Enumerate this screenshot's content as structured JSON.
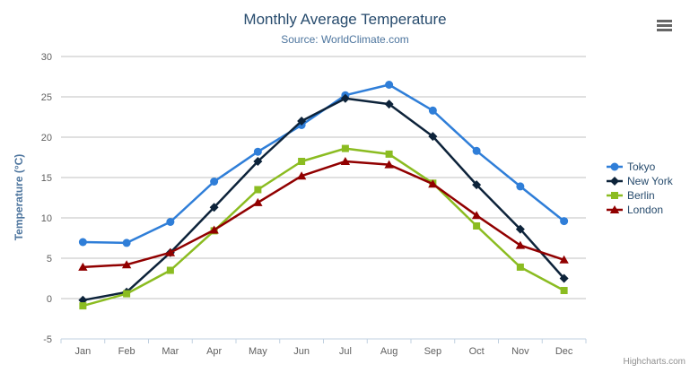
{
  "header": {
    "title": "Monthly Average Temperature",
    "subtitle": "Source: WorldClimate.com"
  },
  "icons": {
    "export_menu": "hamburger-menu"
  },
  "credits": "Highcharts.com",
  "colors": {
    "title": "#274b6d",
    "subtitle": "#4d759e",
    "axis_labels": "#606060",
    "gridline": "#c0c0c0",
    "axis_line": "#c0d0e0",
    "legend_text": "#274b6d",
    "credits_text": "#909090"
  },
  "chart_data": {
    "type": "line",
    "title": "Monthly Average Temperature",
    "subtitle": "Source: WorldClimate.com",
    "xlabel": "",
    "ylabel": "Temperature (°C)",
    "ylim": [
      -5,
      30
    ],
    "yticks": [
      -5,
      0,
      5,
      10,
      15,
      20,
      25,
      30
    ],
    "grid": true,
    "legend_position": "right",
    "categories": [
      "Jan",
      "Feb",
      "Mar",
      "Apr",
      "May",
      "Jun",
      "Jul",
      "Aug",
      "Sep",
      "Oct",
      "Nov",
      "Dec"
    ],
    "series": [
      {
        "name": "Tokyo",
        "color": "#2f7ed8",
        "marker": "circle",
        "values": [
          7.0,
          6.9,
          9.5,
          14.5,
          18.2,
          21.5,
          25.2,
          26.5,
          23.3,
          18.3,
          13.9,
          9.6
        ]
      },
      {
        "name": "New York",
        "color": "#0d233a",
        "marker": "diamond",
        "values": [
          -0.2,
          0.8,
          5.7,
          11.3,
          17.0,
          22.0,
          24.8,
          24.1,
          20.1,
          14.1,
          8.6,
          2.5
        ]
      },
      {
        "name": "Berlin",
        "color": "#8bbc21",
        "marker": "square",
        "values": [
          -0.9,
          0.6,
          3.5,
          8.4,
          13.5,
          17.0,
          18.6,
          17.9,
          14.3,
          9.0,
          3.9,
          1.0
        ]
      },
      {
        "name": "London",
        "color": "#910000",
        "marker": "triangle",
        "values": [
          3.9,
          4.2,
          5.7,
          8.5,
          11.9,
          15.2,
          17.0,
          16.6,
          14.2,
          10.3,
          6.6,
          4.8
        ]
      }
    ]
  }
}
